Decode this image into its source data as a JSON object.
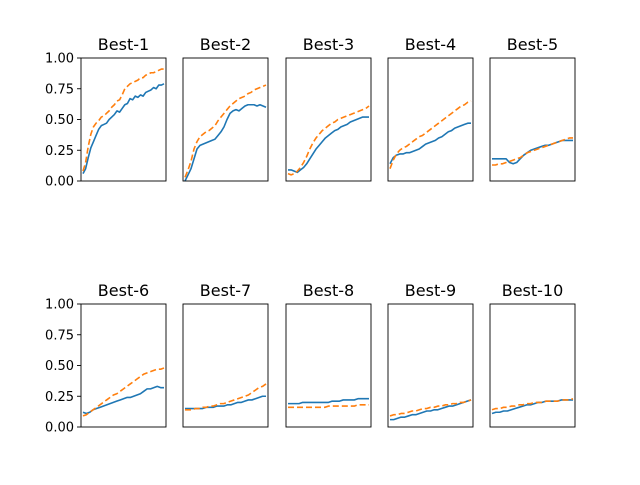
{
  "chart_data": {
    "type": "line",
    "grid": false,
    "ylim": [
      0,
      1
    ],
    "yticks": [
      "0.00",
      "0.25",
      "0.50",
      "0.75",
      "1.00"
    ],
    "xticks_visible": false,
    "series_colors": [
      "#1f77b4",
      "#ff7f0e"
    ],
    "series_styles": [
      "solid",
      "dashed"
    ],
    "panels": [
      {
        "title": "Best-1",
        "series": [
          {
            "values": [
              0.06,
              0.1,
              0.19,
              0.27,
              0.32,
              0.37,
              0.42,
              0.45,
              0.46,
              0.47,
              0.5,
              0.52,
              0.54,
              0.57,
              0.56,
              0.59,
              0.62,
              0.63,
              0.67,
              0.66,
              0.69,
              0.68,
              0.7,
              0.69,
              0.72,
              0.73,
              0.74,
              0.76,
              0.75,
              0.78,
              0.78,
              0.79
            ]
          },
          {
            "values": [
              0.08,
              0.15,
              0.28,
              0.38,
              0.44,
              0.47,
              0.49,
              0.52,
              0.53,
              0.55,
              0.57,
              0.6,
              0.62,
              0.65,
              0.66,
              0.7,
              0.75,
              0.77,
              0.79,
              0.8,
              0.81,
              0.82,
              0.84,
              0.84,
              0.86,
              0.87,
              0.88,
              0.88,
              0.89,
              0.9,
              0.91,
              0.91
            ]
          }
        ]
      },
      {
        "title": "Best-2",
        "series": [
          {
            "values": [
              0.0,
              0.05,
              0.1,
              0.18,
              0.26,
              0.29,
              0.3,
              0.31,
              0.32,
              0.33,
              0.34,
              0.37,
              0.4,
              0.44,
              0.5,
              0.55,
              0.57,
              0.58,
              0.57,
              0.59,
              0.61,
              0.62,
              0.62,
              0.62,
              0.61,
              0.62,
              0.61,
              0.6
            ]
          },
          {
            "values": [
              0.03,
              0.09,
              0.16,
              0.26,
              0.32,
              0.36,
              0.38,
              0.4,
              0.41,
              0.43,
              0.45,
              0.49,
              0.52,
              0.55,
              0.58,
              0.61,
              0.63,
              0.65,
              0.67,
              0.68,
              0.69,
              0.71,
              0.72,
              0.74,
              0.75,
              0.76,
              0.77,
              0.78
            ]
          }
        ]
      },
      {
        "title": "Best-3",
        "series": [
          {
            "values": [
              0.09,
              0.09,
              0.08,
              0.07,
              0.09,
              0.11,
              0.14,
              0.18,
              0.22,
              0.26,
              0.29,
              0.32,
              0.35,
              0.37,
              0.39,
              0.41,
              0.42,
              0.44,
              0.45,
              0.46,
              0.48,
              0.49,
              0.5,
              0.51,
              0.52,
              0.52,
              0.52
            ]
          },
          {
            "values": [
              0.06,
              0.05,
              0.06,
              0.08,
              0.11,
              0.15,
              0.2,
              0.26,
              0.31,
              0.35,
              0.38,
              0.41,
              0.43,
              0.45,
              0.47,
              0.48,
              0.5,
              0.51,
              0.52,
              0.53,
              0.54,
              0.55,
              0.56,
              0.57,
              0.58,
              0.59,
              0.61
            ]
          }
        ]
      },
      {
        "title": "Best-4",
        "series": [
          {
            "values": [
              0.14,
              0.19,
              0.21,
              0.22,
              0.22,
              0.23,
              0.23,
              0.24,
              0.25,
              0.26,
              0.28,
              0.3,
              0.31,
              0.32,
              0.33,
              0.35,
              0.36,
              0.38,
              0.4,
              0.41,
              0.43,
              0.44,
              0.45,
              0.46,
              0.47,
              0.47
            ]
          },
          {
            "values": [
              0.1,
              0.17,
              0.22,
              0.25,
              0.27,
              0.28,
              0.3,
              0.32,
              0.34,
              0.36,
              0.37,
              0.39,
              0.41,
              0.43,
              0.45,
              0.47,
              0.49,
              0.51,
              0.53,
              0.55,
              0.57,
              0.59,
              0.61,
              0.62,
              0.64,
              0.65
            ]
          }
        ]
      },
      {
        "title": "Best-5",
        "series": [
          {
            "values": [
              0.18,
              0.18,
              0.18,
              0.18,
              0.18,
              0.15,
              0.14,
              0.15,
              0.18,
              0.21,
              0.23,
              0.25,
              0.26,
              0.27,
              0.28,
              0.29,
              0.29,
              0.3,
              0.31,
              0.32,
              0.33,
              0.33,
              0.33,
              0.33
            ]
          },
          {
            "values": [
              0.13,
              0.13,
              0.14,
              0.14,
              0.15,
              0.16,
              0.17,
              0.18,
              0.19,
              0.21,
              0.23,
              0.24,
              0.25,
              0.26,
              0.27,
              0.28,
              0.29,
              0.3,
              0.31,
              0.32,
              0.33,
              0.34,
              0.35,
              0.35
            ]
          }
        ]
      },
      {
        "title": "Best-6",
        "series": [
          {
            "values": [
              0.12,
              0.11,
              0.12,
              0.14,
              0.15,
              0.16,
              0.17,
              0.18,
              0.19,
              0.2,
              0.21,
              0.22,
              0.23,
              0.24,
              0.24,
              0.25,
              0.26,
              0.27,
              0.29,
              0.31,
              0.31,
              0.32,
              0.33,
              0.32,
              0.32
            ]
          },
          {
            "values": [
              0.09,
              0.1,
              0.12,
              0.14,
              0.16,
              0.18,
              0.2,
              0.22,
              0.24,
              0.26,
              0.27,
              0.29,
              0.31,
              0.33,
              0.35,
              0.37,
              0.39,
              0.41,
              0.43,
              0.44,
              0.45,
              0.46,
              0.47,
              0.47,
              0.48
            ]
          }
        ]
      },
      {
        "title": "Best-7",
        "series": [
          {
            "values": [
              0.15,
              0.15,
              0.15,
              0.15,
              0.15,
              0.15,
              0.16,
              0.16,
              0.16,
              0.17,
              0.17,
              0.17,
              0.18,
              0.18,
              0.19,
              0.2,
              0.2,
              0.21,
              0.22,
              0.22,
              0.23,
              0.24,
              0.25,
              0.25
            ]
          },
          {
            "values": [
              0.14,
              0.14,
              0.14,
              0.15,
              0.15,
              0.16,
              0.16,
              0.17,
              0.17,
              0.18,
              0.19,
              0.19,
              0.2,
              0.21,
              0.22,
              0.23,
              0.24,
              0.25,
              0.26,
              0.28,
              0.3,
              0.32,
              0.33,
              0.35
            ]
          }
        ]
      },
      {
        "title": "Best-8",
        "series": [
          {
            "values": [
              0.19,
              0.19,
              0.19,
              0.19,
              0.2,
              0.2,
              0.2,
              0.2,
              0.2,
              0.2,
              0.2,
              0.2,
              0.21,
              0.21,
              0.21,
              0.22,
              0.22,
              0.22,
              0.22,
              0.23,
              0.23,
              0.23,
              0.23
            ]
          },
          {
            "values": [
              0.16,
              0.16,
              0.16,
              0.16,
              0.16,
              0.16,
              0.16,
              0.16,
              0.16,
              0.16,
              0.16,
              0.17,
              0.17,
              0.17,
              0.17,
              0.17,
              0.17,
              0.17,
              0.17,
              0.18,
              0.18,
              0.18,
              0.18
            ]
          }
        ]
      },
      {
        "title": "Best-9",
        "series": [
          {
            "values": [
              0.06,
              0.06,
              0.07,
              0.08,
              0.08,
              0.09,
              0.1,
              0.1,
              0.11,
              0.12,
              0.13,
              0.13,
              0.14,
              0.14,
              0.15,
              0.16,
              0.17,
              0.17,
              0.18,
              0.19,
              0.2,
              0.21,
              0.22
            ]
          },
          {
            "values": [
              0.09,
              0.1,
              0.1,
              0.11,
              0.11,
              0.12,
              0.13,
              0.13,
              0.14,
              0.15,
              0.15,
              0.16,
              0.16,
              0.17,
              0.17,
              0.18,
              0.18,
              0.19,
              0.19,
              0.2,
              0.2,
              0.21,
              0.22
            ]
          }
        ]
      },
      {
        "title": "Best-10",
        "series": [
          {
            "values": [
              0.11,
              0.12,
              0.12,
              0.13,
              0.13,
              0.14,
              0.15,
              0.16,
              0.17,
              0.18,
              0.18,
              0.19,
              0.2,
              0.2,
              0.21,
              0.21,
              0.21,
              0.21,
              0.22,
              0.22,
              0.22,
              0.22
            ]
          },
          {
            "values": [
              0.14,
              0.15,
              0.15,
              0.16,
              0.16,
              0.17,
              0.17,
              0.18,
              0.18,
              0.19,
              0.19,
              0.2,
              0.2,
              0.2,
              0.21,
              0.21,
              0.21,
              0.21,
              0.22,
              0.22,
              0.22,
              0.23
            ]
          }
        ]
      }
    ]
  }
}
